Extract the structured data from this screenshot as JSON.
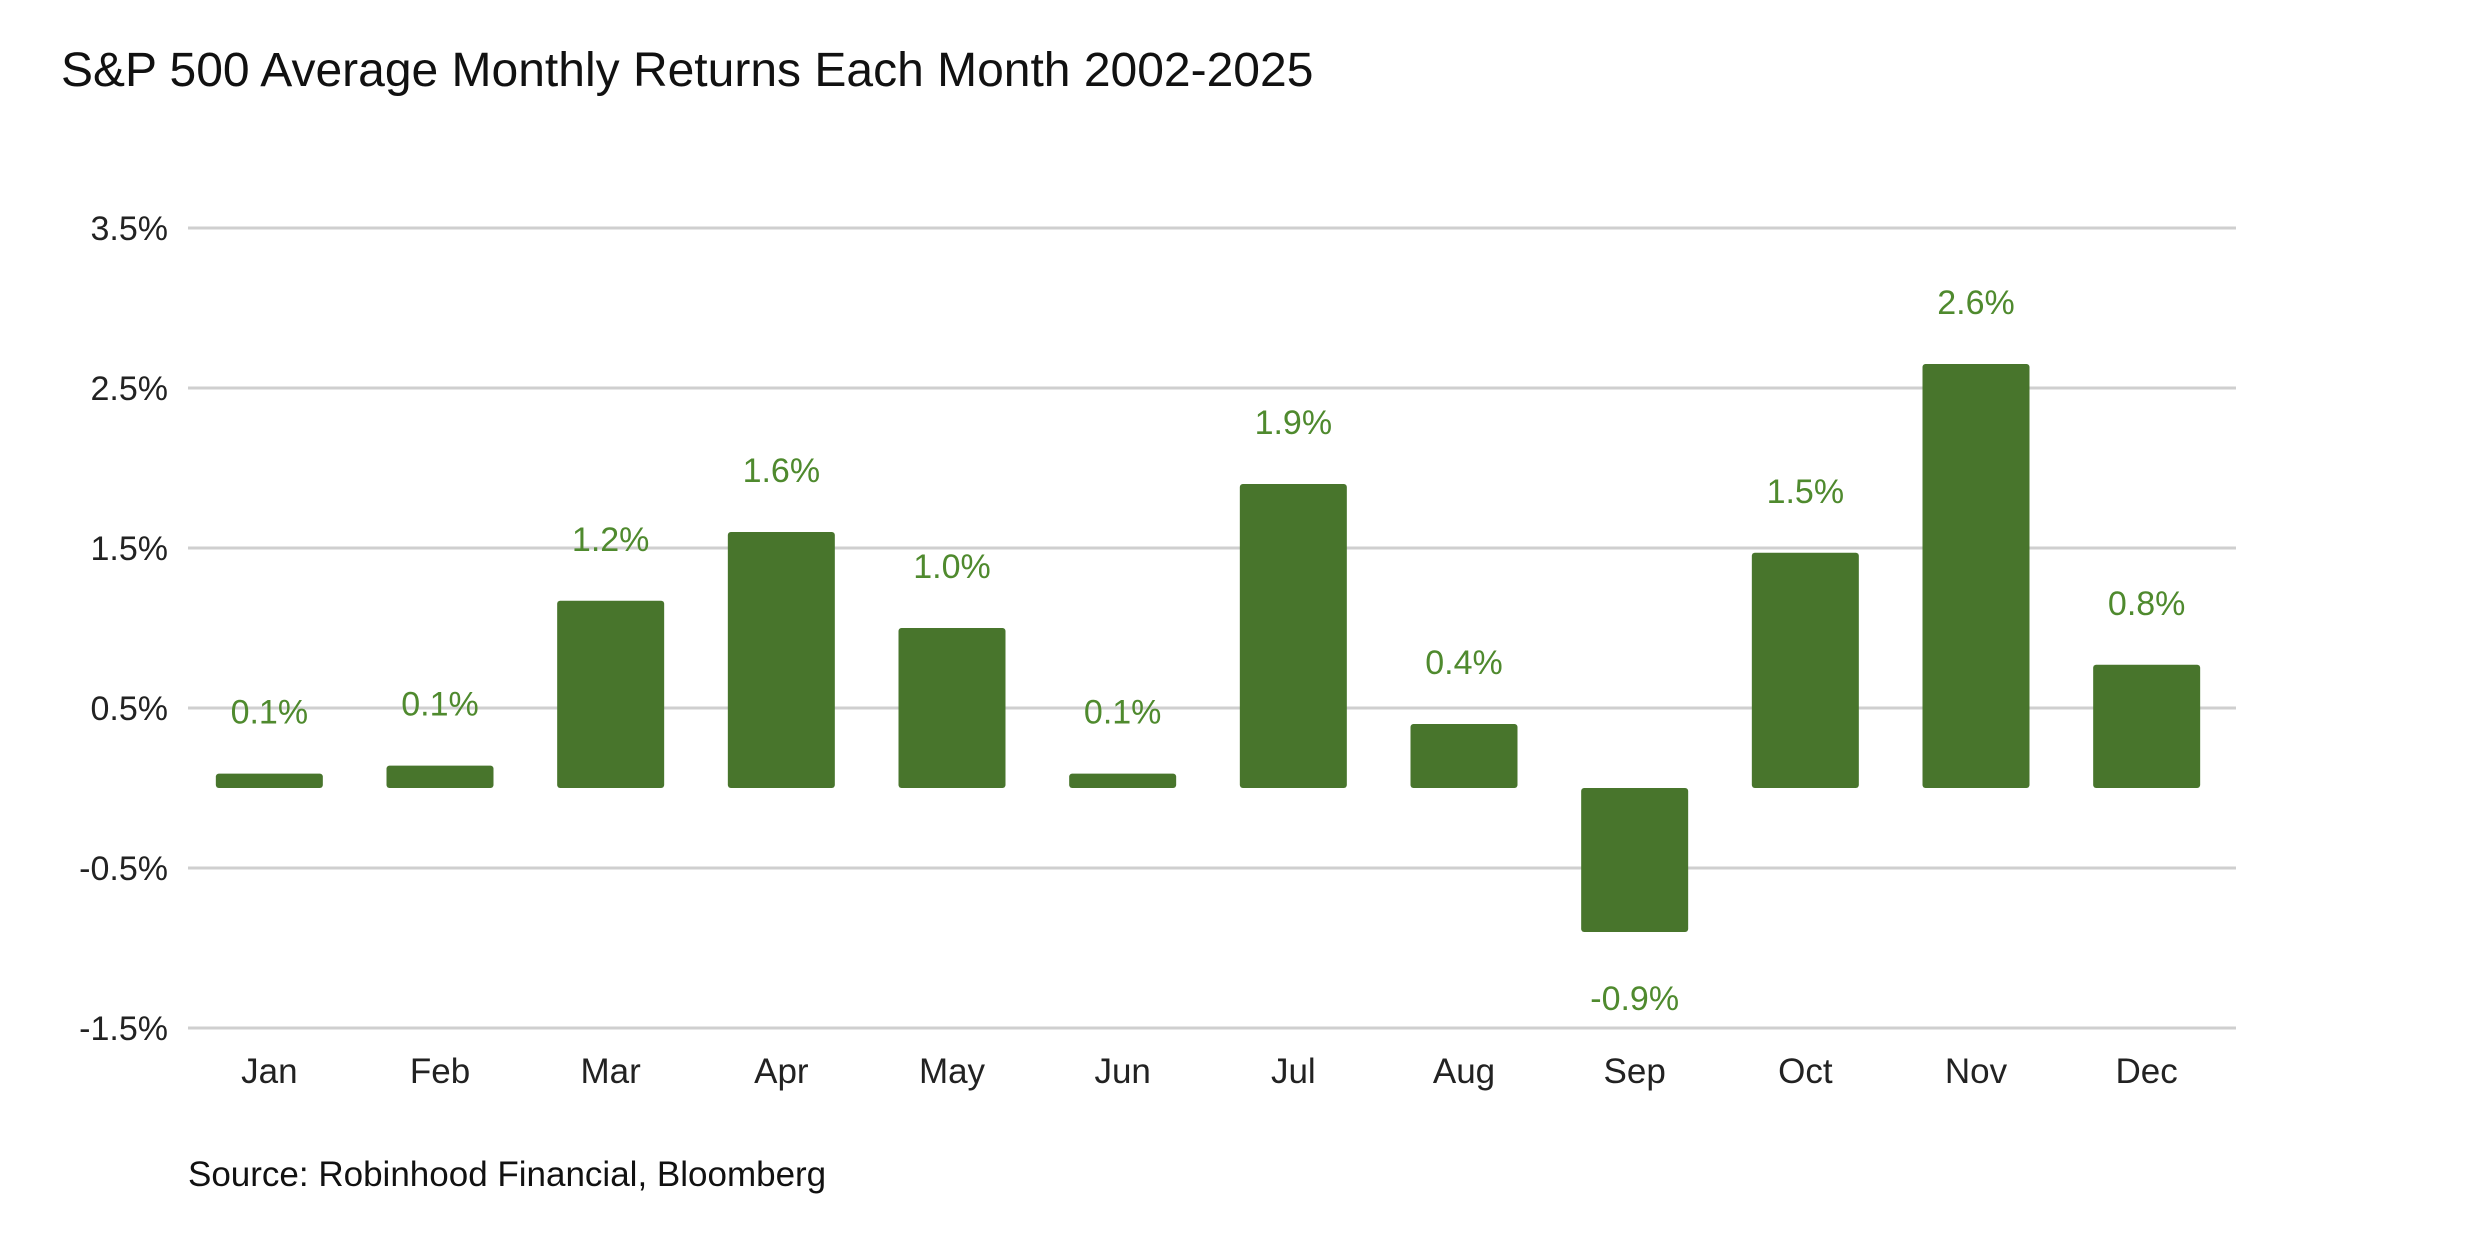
{
  "chart_data": {
    "type": "bar",
    "title": "S&P 500 Average Monthly Returns Each Month 2002-2025",
    "source": "Source: Robinhood Financial, Bloomberg",
    "xlabel": "",
    "ylabel": "",
    "categories": [
      "Jan",
      "Feb",
      "Mar",
      "Apr",
      "May",
      "Jun",
      "Jul",
      "Aug",
      "Sep",
      "Oct",
      "Nov",
      "Dec"
    ],
    "values": [
      0.09,
      0.14,
      1.17,
      1.6,
      1.0,
      0.09,
      1.9,
      0.4,
      -0.9,
      1.47,
      2.65,
      0.77
    ],
    "data_labels": [
      "0.1%",
      "0.1%",
      "1.2%",
      "1.6%",
      "1.0%",
      "0.1%",
      "1.9%",
      "0.4%",
      "-0.9%",
      "1.5%",
      "2.6%",
      "0.8%"
    ],
    "yticks": [
      3.5,
      2.5,
      1.5,
      0.5,
      -0.5,
      -1.5
    ],
    "ytick_labels": [
      "3.5%",
      "2.5%",
      "1.5%",
      "0.5%",
      "-0.5%",
      "-1.5%"
    ],
    "ylim": [
      -1.5,
      3.5
    ],
    "grid": true,
    "bar_color": "#48752c",
    "label_color": "#4f8a2e"
  }
}
